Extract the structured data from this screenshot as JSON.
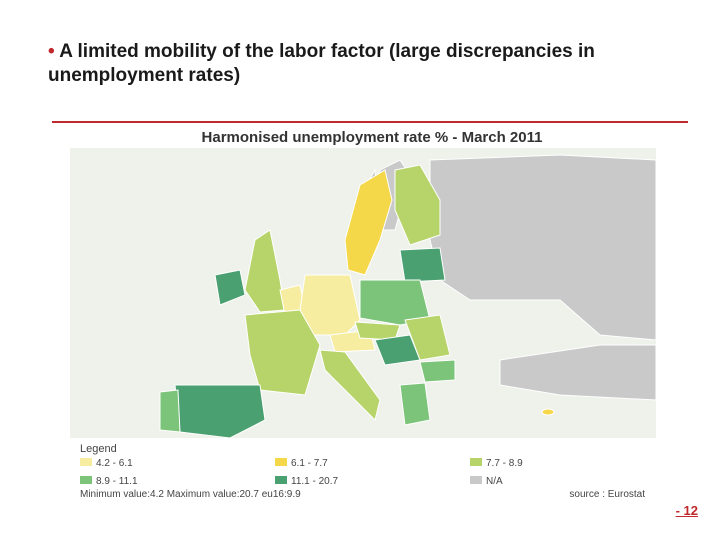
{
  "header": {
    "bullet": "•",
    "title": "A limited mobility of the labor factor (large discrepancies in unemployment rates)"
  },
  "map": {
    "title": "Harmonised unemployment rate % - March 2011",
    "legend": {
      "heading": "Legend",
      "items": [
        "4.2 - 6.1",
        "6.1 - 7.7",
        "7.7 - 8.9",
        "8.9 - 11.1",
        "11.1 - 20.7",
        "N/A"
      ]
    },
    "footnote": "Minimum value:4.2 Maximum value:20.7 eu16:9.9",
    "source": "source : Eurostat"
  },
  "page_number": "- 12"
}
